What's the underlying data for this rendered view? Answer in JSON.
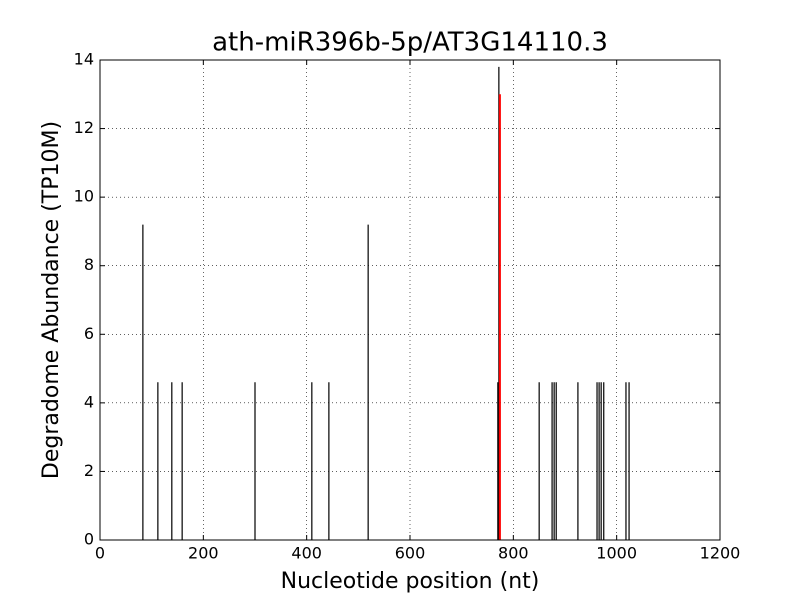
{
  "chart_data": {
    "type": "bar",
    "title": "ath-miR396b-5p/AT3G14110.3",
    "xlabel": "Nucleotide position (nt)",
    "ylabel": "Degradome Abundance (TP10M)",
    "xlim": [
      0,
      1200
    ],
    "ylim": [
      0,
      14
    ],
    "xticks": [
      0,
      200,
      400,
      600,
      800,
      1000,
      1200
    ],
    "yticks": [
      0,
      2,
      4,
      6,
      8,
      10,
      12,
      14
    ],
    "grid": true,
    "series": [
      {
        "color": "#000000",
        "x": [
          83,
          112,
          139,
          159,
          300,
          410,
          443,
          519,
          770,
          772,
          850,
          875,
          879,
          883,
          925,
          962,
          966,
          970,
          975,
          1018,
          1024
        ],
        "values": [
          9.2,
          4.6,
          4.6,
          4.6,
          4.6,
          4.6,
          4.6,
          9.2,
          4.6,
          13.8,
          4.6,
          4.6,
          4.6,
          4.6,
          4.6,
          4.6,
          4.6,
          4.6,
          4.6,
          4.6,
          4.6
        ]
      },
      {
        "color": "#ff0000",
        "x": [
          774
        ],
        "values": [
          13
        ]
      }
    ]
  }
}
